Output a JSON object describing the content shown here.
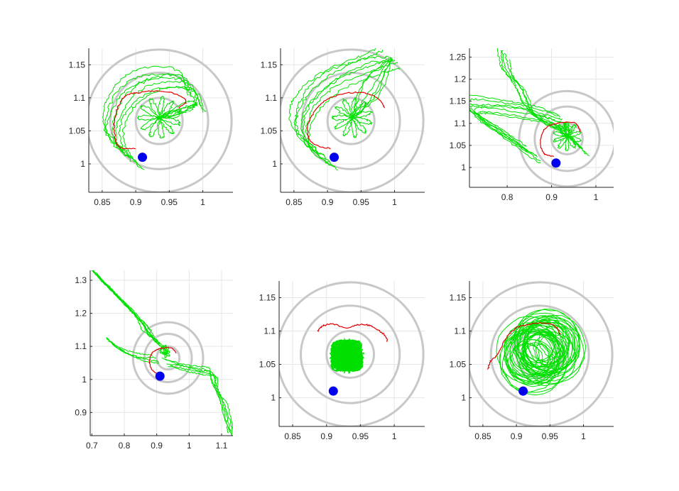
{
  "chart_data": [
    {
      "type": "line",
      "panel": 1,
      "xlim": [
        0.83,
        1.045
      ],
      "ylim": [
        0.957,
        1.175
      ],
      "xticks": [
        0.85,
        0.9,
        0.95,
        1
      ],
      "xtick_labels": [
        "0.85",
        "0.9",
        "0.95",
        "1"
      ],
      "yticks": [
        1,
        1.05,
        1.1,
        1.15
      ],
      "ytick_labels": [
        "1",
        "1.05",
        "1.1",
        "1.15"
      ],
      "grid": true,
      "rings": {
        "center": [
          0.935,
          1.065
        ],
        "radii": [
          0.035,
          0.073,
          0.108
        ]
      },
      "marker": {
        "x": 0.91,
        "y": 1.01
      },
      "highlight_path": {
        "x": [
          0.9,
          0.875,
          0.868,
          0.87,
          0.878,
          0.89,
          0.905,
          0.93,
          0.96,
          0.975,
          0.965
        ],
        "y": [
          1.023,
          1.026,
          1.05,
          1.075,
          1.095,
          1.105,
          1.108,
          1.11,
          1.106,
          1.095,
          1.085
        ]
      },
      "pattern": {
        "kind": "bundle-rosette",
        "bundle": [
          [
            0.895,
            1.005
          ],
          [
            0.865,
            1.045
          ],
          [
            0.878,
            1.095
          ],
          [
            0.92,
            1.125
          ],
          [
            0.975,
            1.125
          ],
          [
            0.99,
            1.09
          ]
        ],
        "rosette": {
          "center": [
            0.935,
            1.07
          ],
          "r": 0.032,
          "loops": 11
        },
        "offset": 0.007
      }
    },
    {
      "type": "line",
      "panel": 2,
      "xlim": [
        0.83,
        1.045
      ],
      "ylim": [
        0.957,
        1.175
      ],
      "xticks": [
        0.85,
        0.9,
        0.95,
        1
      ],
      "xtick_labels": [
        "0.85",
        "0.9",
        "0.95",
        "1"
      ],
      "yticks": [
        1,
        1.05,
        1.1,
        1.15
      ],
      "ytick_labels": [
        "1",
        "1.05",
        "1.1",
        "1.15"
      ],
      "grid": true,
      "rings": {
        "center": [
          0.935,
          1.065
        ],
        "radii": [
          0.035,
          0.073,
          0.108
        ]
      },
      "marker": {
        "x": 0.91,
        "y": 1.01
      },
      "highlight_path": {
        "x": [
          0.905,
          0.88,
          0.87,
          0.878,
          0.895,
          0.92,
          0.95,
          0.975,
          0.985
        ],
        "y": [
          1.023,
          1.03,
          1.05,
          1.075,
          1.095,
          1.105,
          1.108,
          1.1,
          1.085
        ]
      },
      "pattern": {
        "kind": "bundle-rosette",
        "bundle": [
          [
            0.9,
            1.005
          ],
          [
            0.862,
            1.04
          ],
          [
            0.868,
            1.085
          ],
          [
            0.905,
            1.125
          ],
          [
            0.96,
            1.15
          ],
          [
            0.995,
            1.16
          ]
        ],
        "rosette": {
          "center": [
            0.937,
            1.07
          ],
          "r": 0.03,
          "loops": 11
        },
        "offset": 0.007
      }
    },
    {
      "type": "line",
      "panel": 3,
      "xlim": [
        0.715,
        1.04
      ],
      "ylim": [
        0.955,
        1.27
      ],
      "xticks": [
        0.8,
        0.9,
        1
      ],
      "xtick_labels": [
        "0.8",
        "0.9",
        "1"
      ],
      "yticks": [
        1,
        1.05,
        1.1,
        1.15,
        1.2,
        1.25
      ],
      "ytick_labels": [
        "1",
        "1.05",
        "1.1",
        "1.15",
        "1.2",
        "1.25"
      ],
      "grid": true,
      "rings": {
        "center": [
          0.935,
          1.065
        ],
        "radii": [
          0.035,
          0.073,
          0.108
        ]
      },
      "marker": {
        "x": 0.91,
        "y": 1.01
      },
      "highlight_path": {
        "x": [
          0.905,
          0.885,
          0.875,
          0.878,
          0.89,
          0.905,
          0.93,
          0.955,
          0.965
        ],
        "y": [
          1.025,
          1.03,
          1.05,
          1.075,
          1.092,
          1.098,
          1.102,
          1.1,
          1.08
        ]
      },
      "pattern": {
        "kind": "bundle-rosette",
        "bundle": [
          [
            0.86,
            1.03
          ],
          [
            0.8,
            1.07
          ],
          [
            0.72,
            1.125
          ],
          [
            0.74,
            1.14
          ],
          [
            0.82,
            1.13
          ],
          [
            0.88,
            1.12
          ],
          [
            0.93,
            1.1
          ]
        ],
        "rosette": {
          "center": [
            0.935,
            1.07
          ],
          "r": 0.032,
          "loops": 10
        },
        "offset": 0.009,
        "extra_bundle": [
          [
            0.97,
            1.04
          ],
          [
            0.93,
            1.08
          ],
          [
            0.86,
            1.12
          ],
          [
            0.83,
            1.18
          ],
          [
            0.8,
            1.22
          ],
          [
            0.79,
            1.26
          ]
        ]
      }
    },
    {
      "type": "line",
      "panel": 4,
      "xlim": [
        0.695,
        1.135
      ],
      "ylim": [
        0.83,
        1.33
      ],
      "xticks": [
        0.7,
        0.8,
        0.9,
        1,
        1.1
      ],
      "xtick_labels": [
        "0.7",
        "0.8",
        "0.9",
        "1",
        "1.1"
      ],
      "yticks": [
        0.9,
        1,
        1.1,
        1.2,
        1.3
      ],
      "ytick_labels": [
        "0.9",
        "1",
        "1.1",
        "1.2",
        "1.3"
      ],
      "grid": true,
      "rings": {
        "center": [
          0.935,
          1.065
        ],
        "radii": [
          0.035,
          0.073,
          0.108
        ]
      },
      "marker": {
        "x": 0.91,
        "y": 1.01
      },
      "highlight_path": {
        "x": [
          0.905,
          0.885,
          0.878,
          0.885,
          0.9,
          0.92,
          0.945,
          0.96
        ],
        "y": [
          1.015,
          1.03,
          1.055,
          1.078,
          1.09,
          1.095,
          1.095,
          1.08
        ]
      },
      "pattern": {
        "kind": "bundle-rosette",
        "bundle": [
          [
            0.7,
            1.33
          ],
          [
            0.76,
            1.27
          ],
          [
            0.81,
            1.22
          ],
          [
            0.86,
            1.17
          ],
          [
            0.88,
            1.13
          ],
          [
            0.92,
            1.1
          ]
        ],
        "rosette": {
          "center": [
            0.93,
            1.078
          ],
          "r": 0.012,
          "loops": 5
        },
        "offset": 0.009,
        "extra_bundle": [
          [
            0.93,
            1.05
          ],
          [
            0.98,
            1.04
          ],
          [
            1.03,
            1.03
          ],
          [
            1.07,
            1.02
          ],
          [
            1.08,
            0.98
          ],
          [
            1.1,
            0.94
          ],
          [
            1.12,
            0.88
          ],
          [
            1.13,
            0.83
          ]
        ],
        "extra_bundle2": [
          [
            0.75,
            1.12
          ],
          [
            0.79,
            1.09
          ],
          [
            0.84,
            1.07
          ],
          [
            0.9,
            1.06
          ]
        ]
      }
    },
    {
      "type": "line",
      "panel": 5,
      "xlim": [
        0.83,
        1.045
      ],
      "ylim": [
        0.957,
        1.175
      ],
      "xticks": [
        0.85,
        0.9,
        0.95,
        1
      ],
      "xtick_labels": [
        "0.85",
        "0.9",
        "0.95",
        "1"
      ],
      "yticks": [
        1,
        1.05,
        1.1,
        1.15
      ],
      "ytick_labels": [
        "1",
        "1.05",
        "1.1",
        "1.15"
      ],
      "grid": true,
      "rings": {
        "center": [
          0.935,
          1.065
        ],
        "radii": [
          0.035,
          0.073,
          0.108
        ]
      },
      "marker": {
        "x": 0.91,
        "y": 1.01
      },
      "highlight_path": {
        "x": [
          0.887,
          0.895,
          0.91,
          0.93,
          0.95,
          0.965,
          0.975,
          0.985,
          0.99
        ],
        "y": [
          1.1,
          1.108,
          1.11,
          1.105,
          1.11,
          1.108,
          1.102,
          1.095,
          1.085
        ]
      },
      "pattern": {
        "kind": "rosette-dense",
        "rosette": {
          "center": [
            0.93,
            1.063
          ],
          "r": 0.028,
          "loops": 40
        }
      }
    },
    {
      "type": "line",
      "panel": 6,
      "xlim": [
        0.83,
        1.045
      ],
      "ylim": [
        0.957,
        1.175
      ],
      "xticks": [
        0.85,
        0.9,
        0.95,
        1
      ],
      "xtick_labels": [
        "0.85",
        "0.9",
        "0.95",
        "1"
      ],
      "yticks": [
        1,
        1.05,
        1.1,
        1.15
      ],
      "ytick_labels": [
        "1",
        "1.05",
        "1.1",
        "1.15"
      ],
      "grid": true,
      "rings": {
        "center": [
          0.935,
          1.065
        ],
        "radii": [
          0.035,
          0.073,
          0.108
        ]
      },
      "marker": {
        "x": 0.91,
        "y": 1.01
      },
      "highlight_path": {
        "x": [
          0.858,
          0.862,
          0.872,
          0.885,
          0.9,
          0.92,
          0.945,
          0.96,
          0.965
        ],
        "y": [
          1.042,
          1.055,
          1.065,
          1.09,
          1.105,
          1.11,
          1.112,
          1.105,
          1.095
        ]
      },
      "pattern": {
        "kind": "swirl",
        "rosette": {
          "center": [
            0.937,
            1.068
          ],
          "r": 0.05,
          "loops": 26
        }
      }
    }
  ],
  "colors": {
    "trajectory": "#00e000",
    "highlight": "#e00000",
    "marker": "#0000ee",
    "ring": "#c8c8c8",
    "grid": "#e6e6e6",
    "axis": "#262626"
  }
}
